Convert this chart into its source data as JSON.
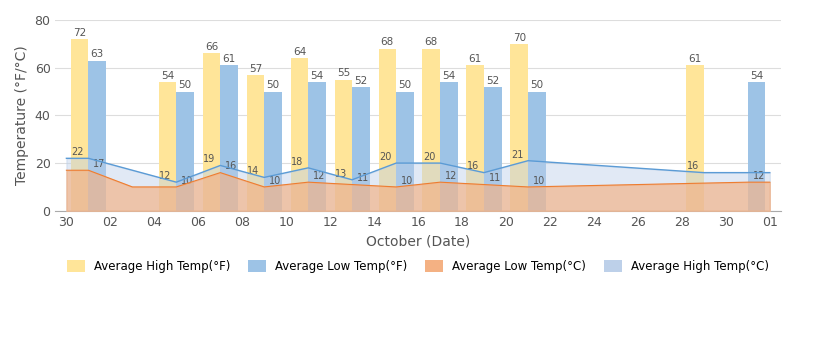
{
  "xlabel": "October (Date)",
  "ylabel": "Temperature (°F/°C)",
  "ylim": [
    0,
    80
  ],
  "yticks": [
    0,
    20,
    40,
    60,
    80
  ],
  "xtick_labels": [
    "30",
    "02",
    "04",
    "06",
    "08",
    "10",
    "12",
    "14",
    "16",
    "18",
    "20",
    "22",
    "24",
    "26",
    "28",
    "30",
    "01"
  ],
  "xtick_positions": [
    0,
    2,
    4,
    6,
    8,
    10,
    12,
    14,
    16,
    18,
    20,
    22,
    24,
    26,
    28,
    30,
    32
  ],
  "bar_pairs": [
    {
      "x_center": 1,
      "high_F": 72,
      "low_F": 63,
      "high_C": 22,
      "low_C": 17
    },
    {
      "x_center": 5,
      "high_F": 54,
      "low_F": 50,
      "high_C": 12,
      "low_C": 10
    },
    {
      "x_center": 7,
      "high_F": 66,
      "low_F": 61,
      "high_C": 19,
      "low_C": 16
    },
    {
      "x_center": 9,
      "high_F": 57,
      "low_F": 50,
      "high_C": 14,
      "low_C": 10
    },
    {
      "x_center": 11,
      "high_F": 64,
      "low_F": 54,
      "high_C": 18,
      "low_C": 12
    },
    {
      "x_center": 13,
      "high_F": 55,
      "low_F": 52,
      "high_C": 13,
      "low_C": 11
    },
    {
      "x_center": 15,
      "high_F": 68,
      "low_F": 50,
      "high_C": 20,
      "low_C": 10
    },
    {
      "x_center": 17,
      "high_F": 68,
      "low_F": 54,
      "high_C": 20,
      "low_C": 12
    },
    {
      "x_center": 19,
      "high_F": 61,
      "low_F": 52,
      "high_C": 16,
      "low_C": 11
    },
    {
      "x_center": 21,
      "high_F": 70,
      "low_F": 50,
      "high_C": 21,
      "low_C": 10
    },
    {
      "x_center": 29,
      "high_F": 61,
      "low_F": null,
      "high_C": 16,
      "low_C": null
    },
    {
      "x_center": 31,
      "high_F": null,
      "low_F": 54,
      "high_C": null,
      "low_C": 12
    }
  ],
  "area_high_C_x": [
    0,
    1,
    3,
    5,
    7,
    9,
    11,
    13,
    15,
    17,
    19,
    21,
    29,
    31,
    32
  ],
  "area_high_C_y": [
    22,
    22,
    17,
    12,
    19,
    14,
    18,
    13,
    20,
    20,
    16,
    21,
    16,
    16,
    16
  ],
  "area_low_C_x": [
    0,
    1,
    3,
    5,
    7,
    9,
    11,
    13,
    15,
    17,
    19,
    21,
    31,
    32
  ],
  "area_low_C_y": [
    17,
    17,
    10,
    10,
    16,
    10,
    12,
    11,
    10,
    12,
    11,
    10,
    12,
    12
  ],
  "bar_width": 0.8,
  "color_high_F": "#FFE599",
  "color_low_F": "#9DC3E6",
  "color_high_C_area": "#BDD0E9",
  "color_low_C_area": "#F4B183",
  "color_high_C_line": "#5B9BD5",
  "color_low_C_line": "#ED7D31",
  "annotation_fontsize": 7.5,
  "axis_fontsize": 9,
  "legend_fontsize": 8.5
}
